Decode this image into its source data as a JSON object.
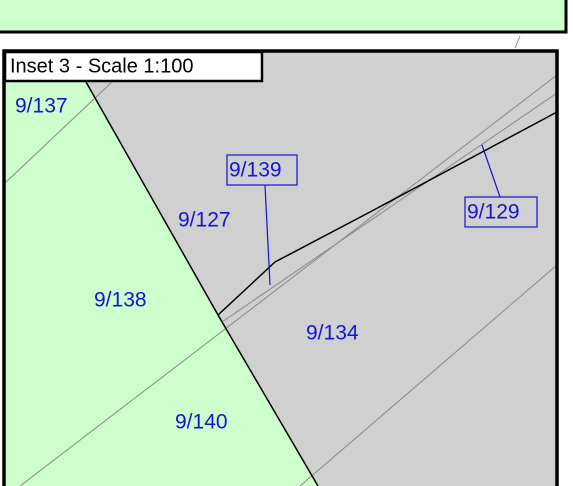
{
  "inset": {
    "title": "Inset 3 - Scale 1:100"
  },
  "parcels": [
    {
      "label": "9/137"
    },
    {
      "label": "9/139"
    },
    {
      "label": "9/127"
    },
    {
      "label": "9/129"
    },
    {
      "label": "9/138"
    },
    {
      "label": "9/134"
    },
    {
      "label": "9/140"
    }
  ]
}
